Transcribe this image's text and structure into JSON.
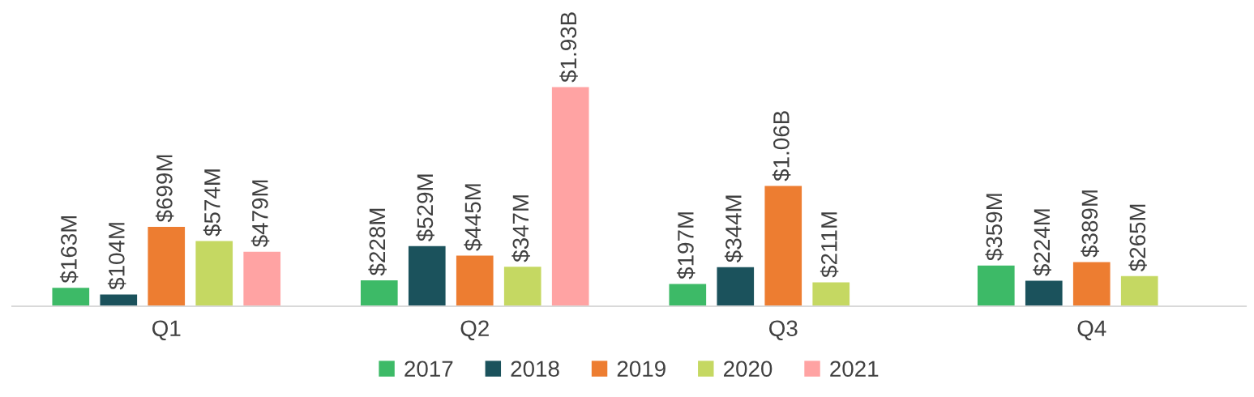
{
  "chart_data": {
    "type": "bar",
    "categories": [
      "Q1",
      "Q2",
      "Q3",
      "Q4"
    ],
    "series": [
      {
        "name": "2017",
        "color": "#3dba67",
        "values": [
          163000000,
          228000000,
          197000000,
          359000000
        ],
        "value_labels": [
          "$163M",
          "$228M",
          "$197M",
          "$359M"
        ]
      },
      {
        "name": "2018",
        "color": "#1b525c",
        "values": [
          104000000,
          529000000,
          344000000,
          224000000
        ],
        "value_labels": [
          "$104M",
          "$529M",
          "$344M",
          "$224M"
        ]
      },
      {
        "name": "2019",
        "color": "#ed7d31",
        "values": [
          699000000,
          445000000,
          1060000000,
          389000000
        ],
        "value_labels": [
          "$699M",
          "$445M",
          "$1.06B",
          "$389M"
        ]
      },
      {
        "name": "2020",
        "color": "#c5d862",
        "values": [
          574000000,
          347000000,
          211000000,
          265000000
        ],
        "value_labels": [
          "$574M",
          "$347M",
          "$211M",
          "$265M"
        ]
      },
      {
        "name": "2021",
        "color": "#ffa3a3",
        "values": [
          479000000,
          1930000000,
          null,
          null
        ],
        "value_labels": [
          "$479M",
          "$1.93B",
          null,
          null
        ]
      }
    ],
    "legend": "bottom"
  }
}
